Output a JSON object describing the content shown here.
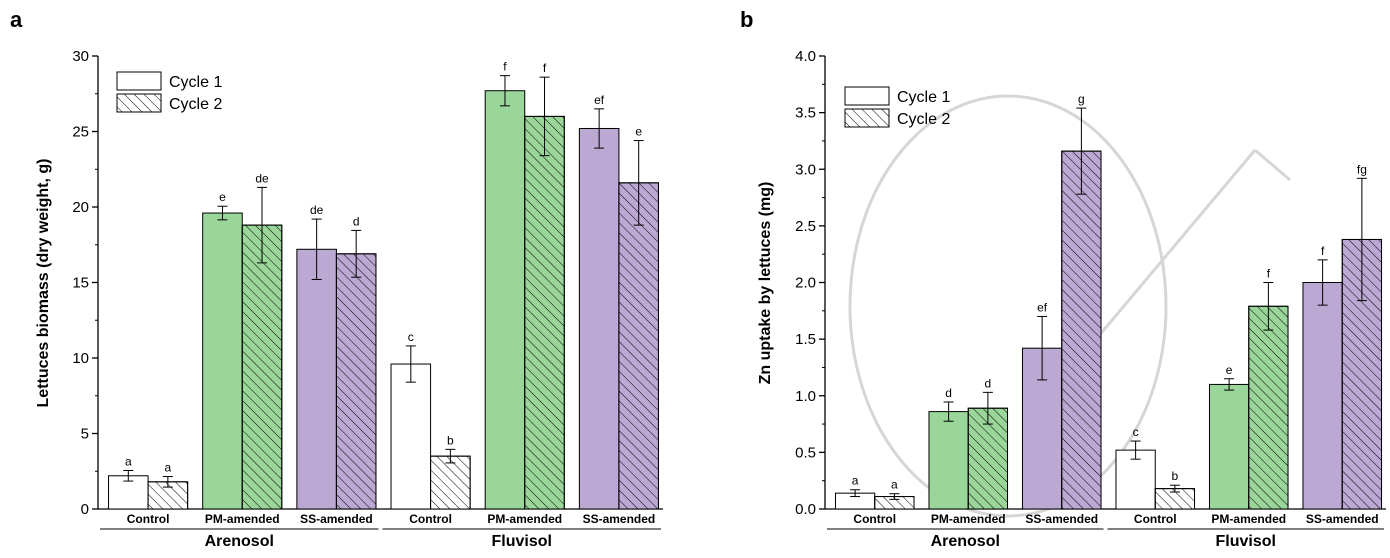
{
  "colors": {
    "control": "#ffffff",
    "pm": "#9ad69a",
    "ss": "#bba8d3",
    "stroke": "#000000",
    "watermark": "#c9c9c9"
  },
  "chart_data": [
    {
      "panel": "a",
      "type": "bar",
      "ylabel": "Lettuces biomass (dry weight, g)",
      "ylim": [
        0,
        30
      ],
      "yticks": [
        "0",
        "5",
        "10",
        "15",
        "20",
        "25",
        "30"
      ],
      "yticks_values": [
        0,
        5,
        10,
        15,
        20,
        25,
        30
      ],
      "legend": [
        "Cycle 1",
        "Cycle 2"
      ],
      "legend_position": "top-left",
      "groups": [
        {
          "name": "Arenosol",
          "categories": [
            {
              "label": "Control",
              "treatment": "control",
              "bars": [
                {
                  "value": 2.2,
                  "err": 0.35,
                  "sig": "a"
                },
                {
                  "value": 1.8,
                  "err": 0.35,
                  "sig": "a"
                }
              ]
            },
            {
              "label": "PM-amended",
              "treatment": "pm",
              "bars": [
                {
                  "value": 19.6,
                  "err": 0.45,
                  "sig": "e"
                },
                {
                  "value": 18.8,
                  "err": 2.5,
                  "sig": "de"
                }
              ]
            },
            {
              "label": "SS-amended",
              "treatment": "ss",
              "bars": [
                {
                  "value": 17.2,
                  "err": 2.0,
                  "sig": "de"
                },
                {
                  "value": 16.9,
                  "err": 1.55,
                  "sig": "d"
                }
              ]
            }
          ]
        },
        {
          "name": "Fluvisol",
          "categories": [
            {
              "label": "Control",
              "treatment": "control",
              "bars": [
                {
                  "value": 9.6,
                  "err": 1.2,
                  "sig": "c"
                },
                {
                  "value": 3.5,
                  "err": 0.45,
                  "sig": "b"
                }
              ]
            },
            {
              "label": "PM-amended",
              "treatment": "pm",
              "bars": [
                {
                  "value": 27.7,
                  "err": 1.0,
                  "sig": "f"
                },
                {
                  "value": 26.0,
                  "err": 2.6,
                  "sig": "f"
                }
              ]
            },
            {
              "label": "SS-amended",
              "treatment": "ss",
              "bars": [
                {
                  "value": 25.2,
                  "err": 1.3,
                  "sig": "ef"
                },
                {
                  "value": 21.6,
                  "err": 2.8,
                  "sig": "e"
                }
              ]
            }
          ]
        }
      ]
    },
    {
      "panel": "b",
      "type": "bar",
      "ylabel": "Zn uptake by lettuces (mg)",
      "ylim": [
        0,
        4
      ],
      "yticks": [
        "0.0",
        "0.5",
        "1.0",
        "1.5",
        "2.0",
        "2.5",
        "3.0",
        "3.5",
        "4.0"
      ],
      "yticks_values": [
        0,
        0.5,
        1,
        1.5,
        2,
        2.5,
        3,
        3.5,
        4
      ],
      "legend": [
        "Cycle 1",
        "Cycle 2"
      ],
      "legend_position": "top-left",
      "groups": [
        {
          "name": "Arenosol",
          "categories": [
            {
              "label": "Control",
              "treatment": "control",
              "bars": [
                {
                  "value": 0.14,
                  "err": 0.03,
                  "sig": "a"
                },
                {
                  "value": 0.11,
                  "err": 0.025,
                  "sig": "a"
                }
              ]
            },
            {
              "label": "PM-amended",
              "treatment": "pm",
              "bars": [
                {
                  "value": 0.86,
                  "err": 0.085,
                  "sig": "d"
                },
                {
                  "value": 0.89,
                  "err": 0.14,
                  "sig": "d"
                }
              ]
            },
            {
              "label": "SS-amended",
              "treatment": "ss",
              "bars": [
                {
                  "value": 1.42,
                  "err": 0.28,
                  "sig": "ef"
                },
                {
                  "value": 3.16,
                  "err": 0.38,
                  "sig": "g"
                }
              ]
            }
          ]
        },
        {
          "name": "Fluvisol",
          "categories": [
            {
              "label": "Control",
              "treatment": "control",
              "bars": [
                {
                  "value": 0.52,
                  "err": 0.08,
                  "sig": "c"
                },
                {
                  "value": 0.18,
                  "err": 0.03,
                  "sig": "b"
                }
              ]
            },
            {
              "label": "PM-amended",
              "treatment": "pm",
              "bars": [
                {
                  "value": 1.1,
                  "err": 0.05,
                  "sig": "e"
                },
                {
                  "value": 1.79,
                  "err": 0.21,
                  "sig": "f"
                }
              ]
            },
            {
              "label": "SS-amended",
              "treatment": "ss",
              "bars": [
                {
                  "value": 2.0,
                  "err": 0.2,
                  "sig": "f"
                },
                {
                  "value": 2.38,
                  "err": 0.54,
                  "sig": "fg"
                }
              ]
            }
          ]
        }
      ]
    }
  ]
}
